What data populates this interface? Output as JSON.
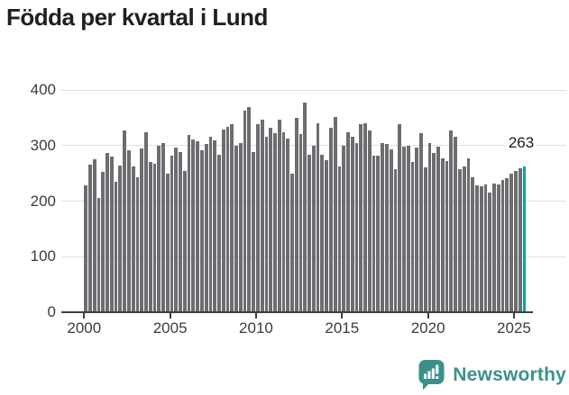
{
  "title": "Födda per kvartal i Lund",
  "annotation": {
    "last_value_label": "263"
  },
  "logo": {
    "text": "Newsworthy"
  },
  "colors": {
    "bar": "#6d6c70",
    "highlight": "#0ca39f",
    "grid": "#e0e0e0",
    "axis": "#3f3f3f",
    "tick_label": "#3c3c3c",
    "title": "#202020",
    "logo": "#3b918a",
    "background": "#ffffff"
  },
  "chart_data": {
    "type": "bar",
    "title": "Födda per kvartal i Lund",
    "xlabel": "",
    "ylabel": "",
    "frequency": "quarterly",
    "x_start": "2000-Q1",
    "x_end": "2025-Q3",
    "ylim": [
      0,
      400
    ],
    "y_ticks": [
      0,
      100,
      200,
      300,
      400
    ],
    "x_tick_years": [
      2000,
      2005,
      2010,
      2015,
      2020,
      2025
    ],
    "grid": true,
    "legend": "none",
    "highlight_last_bar": true,
    "last_value": 263,
    "values": [
      228,
      265,
      276,
      206,
      252,
      287,
      280,
      235,
      264,
      327,
      292,
      262,
      243,
      295,
      324,
      270,
      268,
      300,
      305,
      249,
      281,
      297,
      289,
      254,
      319,
      311,
      308,
      291,
      303,
      316,
      310,
      284,
      328,
      334,
      338,
      300,
      305,
      362,
      370,
      289,
      339,
      347,
      315,
      332,
      322,
      347,
      324,
      313,
      249,
      350,
      320,
      378,
      284,
      300,
      340,
      284,
      274,
      332,
      352,
      262,
      300,
      324,
      316,
      305,
      338,
      340,
      327,
      281,
      281,
      305,
      303,
      293,
      257,
      338,
      298,
      300,
      270,
      296,
      322,
      260,
      305,
      287,
      298,
      277,
      272,
      327,
      315,
      258,
      262,
      277,
      243,
      228,
      227,
      230,
      216,
      232,
      230,
      238,
      241,
      249,
      255,
      259,
      263
    ]
  }
}
